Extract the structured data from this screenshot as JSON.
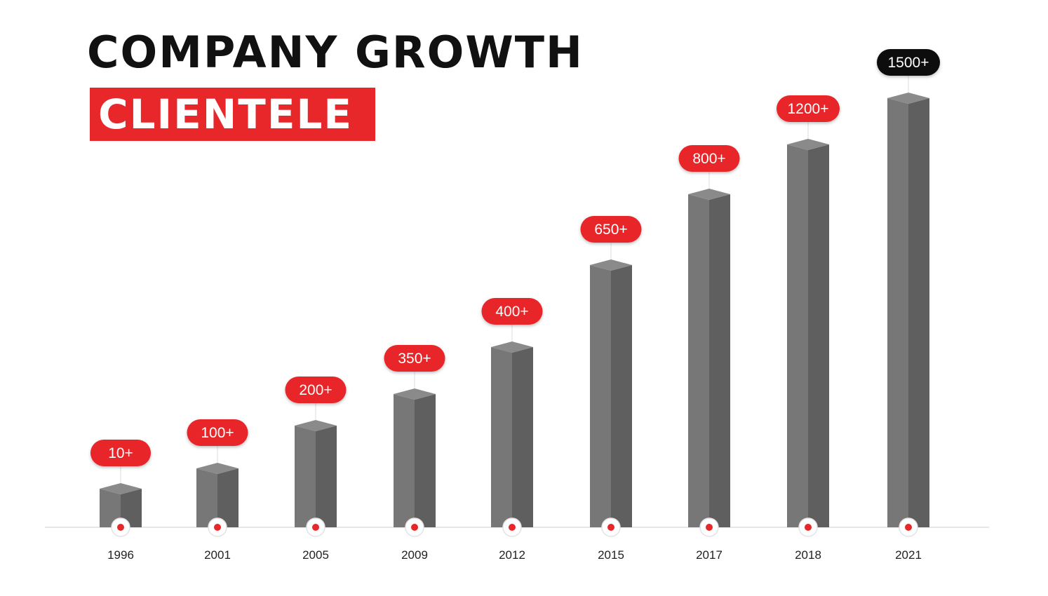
{
  "header": {
    "title": "COMPANY GROWTH",
    "subtitle": "CLIENTELE"
  },
  "colors": {
    "accent": "#e8272b",
    "highlight_label": "#0d0d0d",
    "bar_front": "#777777",
    "bar_side": "#5f5f5f",
    "bar_top": "#8a8a8a"
  },
  "chart_data": {
    "type": "bar",
    "categories": [
      "1996",
      "2001",
      "2005",
      "2009",
      "2012",
      "2015",
      "2017",
      "2018",
      "2021"
    ],
    "values": [
      10,
      100,
      200,
      350,
      400,
      650,
      800,
      1200,
      1500
    ],
    "value_labels": [
      "10+",
      "100+",
      "200+",
      "350+",
      "400+",
      "650+",
      "800+",
      "1200+",
      "1500+"
    ],
    "highlight_index": 8,
    "title": "COMPANY GROWTH",
    "subtitle": "CLIENTELE",
    "grid": false,
    "legend": "none"
  }
}
